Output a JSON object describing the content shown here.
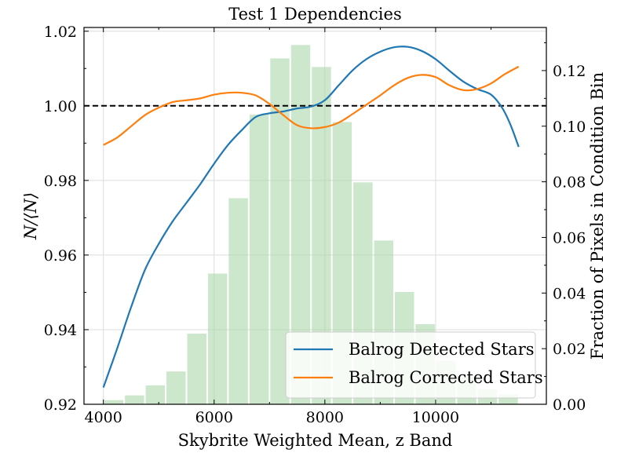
{
  "chart_data": {
    "type": "line",
    "title": "Test 1 Dependencies",
    "xlabel": "Skybrite Weighted Mean, z Band",
    "ylabel": "N/⟨N⟩",
    "ylabel_right": "Fraction of Pixels in Condition Bin",
    "xlim": [
      3650,
      12000
    ],
    "ylim": [
      0.92,
      1.021
    ],
    "ylim_right": [
      0.0,
      0.1355
    ],
    "x_ticks": [
      4000,
      6000,
      8000,
      10000
    ],
    "x_tick_labels": [
      "4000",
      "6000",
      "8000",
      "10000"
    ],
    "y_ticks": [
      0.92,
      0.94,
      0.96,
      0.98,
      1.0,
      1.02
    ],
    "y_tick_labels": [
      "0.92",
      "0.94",
      "0.96",
      "0.98",
      "1.00",
      "1.02"
    ],
    "y_right_ticks": [
      0.0,
      0.02,
      0.04,
      0.06,
      0.08,
      0.1,
      0.12
    ],
    "y_right_tick_labels": [
      "0.00",
      "0.02",
      "0.04",
      "0.06",
      "0.08",
      "0.10",
      "0.12"
    ],
    "reference_line": {
      "y": 1.0,
      "style": "dashed",
      "color": "#000000"
    },
    "grid": true,
    "legend": {
      "placement": "bottom-right"
    },
    "series": [
      {
        "name": "Balrog Detected Stars",
        "color": "#1f77b4",
        "x": [
          4000,
          4250,
          4500,
          4750,
          5000,
          5250,
          5500,
          5750,
          6000,
          6250,
          6500,
          6750,
          7000,
          7250,
          7500,
          7750,
          8000,
          8250,
          8500,
          8750,
          9000,
          9250,
          9500,
          9750,
          10000,
          10250,
          10500,
          10750,
          11000,
          11200,
          11350,
          11500
        ],
        "y": [
          0.9245,
          0.935,
          0.946,
          0.956,
          0.963,
          0.969,
          0.974,
          0.979,
          0.9845,
          0.9895,
          0.9935,
          0.997,
          0.998,
          0.9985,
          0.9993,
          0.9998,
          1.0015,
          1.0055,
          1.0095,
          1.0125,
          1.0145,
          1.0157,
          1.0158,
          1.0147,
          1.0125,
          1.0094,
          1.0065,
          1.0045,
          1.003,
          0.9995,
          0.995,
          0.989
        ]
      },
      {
        "name": "Balrog Corrected Stars",
        "color": "#ff7f0e",
        "x": [
          4000,
          4250,
          4500,
          4750,
          5000,
          5250,
          5500,
          5750,
          6000,
          6250,
          6500,
          6750,
          7000,
          7250,
          7500,
          7750,
          8000,
          8250,
          8500,
          8750,
          9000,
          9250,
          9500,
          9750,
          10000,
          10250,
          10500,
          10750,
          11000,
          11250,
          11500
        ],
        "y": [
          0.9895,
          0.9915,
          0.9945,
          0.9975,
          0.9995,
          1.001,
          1.0015,
          1.002,
          1.003,
          1.0035,
          1.0035,
          1.0028,
          1.0005,
          0.9975,
          0.9948,
          0.994,
          0.9943,
          0.9955,
          0.9978,
          1.0003,
          1.0028,
          1.0055,
          1.0075,
          1.0083,
          1.0077,
          1.0055,
          1.0042,
          1.0045,
          1.006,
          1.0085,
          1.0105
        ]
      }
    ],
    "histogram": {
      "color": "#a8d5a8",
      "bin_edges": [
        4000,
        4375,
        4750,
        5125,
        5500,
        5875,
        6250,
        6625,
        7000,
        7375,
        7750,
        8125,
        8500,
        8875,
        9250,
        9625,
        10000,
        10375,
        10750,
        11125,
        11500
      ],
      "values": [
        0.0015,
        0.0032,
        0.0068,
        0.0118,
        0.0254,
        0.047,
        0.0741,
        0.1042,
        0.1244,
        0.1292,
        0.1213,
        0.1015,
        0.0798,
        0.0589,
        0.0404,
        0.0288,
        0.0157,
        0.0097,
        0.0053,
        0.0036
      ]
    }
  }
}
